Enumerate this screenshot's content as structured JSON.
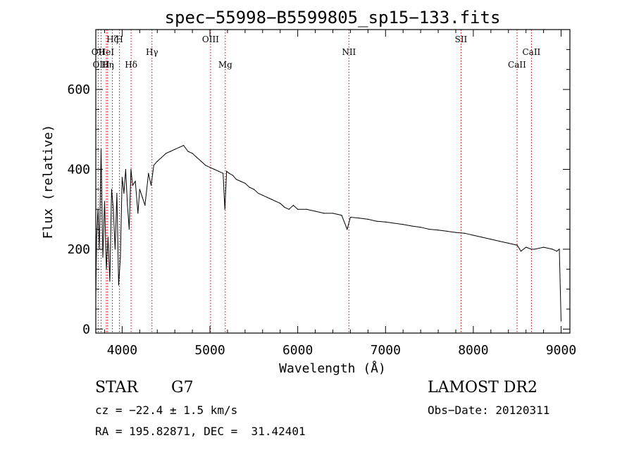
{
  "chart_data": {
    "type": "line",
    "title": "spec−55998−B5599805_sp15−133.fits",
    "xlabel": "Wavelength (Å)",
    "ylabel": "Flux (relative)",
    "xlim": [
      3700,
      9100
    ],
    "ylim": [
      -10,
      750
    ],
    "xticks": [
      4000,
      5000,
      6000,
      7000,
      8000,
      9000
    ],
    "yticks": [
      0,
      200,
      400,
      600
    ],
    "grid": false,
    "series": [
      {
        "x": [
          3700,
          3710,
          3725,
          3740,
          3760,
          3780,
          3800,
          3820,
          3840,
          3860,
          3880,
          3900,
          3920,
          3940,
          3960,
          3980,
          4000,
          4020,
          4040,
          4060,
          4080,
          4100,
          4120,
          4150,
          4180,
          4200,
          4230,
          4260,
          4300,
          4330,
          4360,
          4400,
          4450,
          4500,
          4550,
          4600,
          4650,
          4700,
          4750,
          4800,
          4850,
          4900,
          4950,
          5000,
          5050,
          5100,
          5150,
          5170,
          5190,
          5220,
          5260,
          5300,
          5350,
          5400,
          5450,
          5500,
          5550,
          5600,
          5650,
          5700,
          5750,
          5800,
          5850,
          5900,
          5950,
          6000,
          6100,
          6200,
          6300,
          6400,
          6500,
          6563,
          6600,
          6700,
          6800,
          6900,
          7000,
          7100,
          7200,
          7300,
          7400,
          7500,
          7600,
          7700,
          7800,
          7900,
          8000,
          8100,
          8200,
          8300,
          8400,
          8500,
          8542,
          8600,
          8662,
          8700,
          8800,
          8900,
          8950,
          8980,
          9000
        ],
        "y": [
          80,
          230,
          300,
          200,
          450,
          180,
          320,
          150,
          230,
          120,
          350,
          300,
          200,
          340,
          110,
          180,
          380,
          340,
          400,
          310,
          250,
          400,
          360,
          370,
          290,
          350,
          330,
          310,
          390,
          360,
          410,
          420,
          430,
          440,
          445,
          450,
          455,
          460,
          445,
          440,
          430,
          420,
          410,
          405,
          400,
          395,
          390,
          300,
          395,
          390,
          385,
          375,
          370,
          365,
          355,
          350,
          340,
          335,
          330,
          325,
          320,
          315,
          305,
          300,
          310,
          300,
          300,
          295,
          290,
          290,
          285,
          250,
          280,
          278,
          275,
          270,
          268,
          265,
          262,
          258,
          255,
          250,
          248,
          245,
          242,
          240,
          235,
          230,
          225,
          220,
          215,
          210,
          195,
          205,
          200,
          200,
          205,
          200,
          195,
          200,
          20
        ]
      }
    ],
    "line_markers": [
      {
        "label": "Hζ",
        "wavelength": 3889,
        "row": 1,
        "color": "#cc0000"
      },
      {
        "label": "H",
        "wavelength": 3970,
        "row": 1,
        "color": "#cc0000"
      },
      {
        "label": "OII",
        "wavelength": 3727,
        "row": 2,
        "color": "#cc0000"
      },
      {
        "label": "HeI",
        "wavelength": 3820,
        "row": 2,
        "color": "#cc0000"
      },
      {
        "label": "OIII",
        "wavelength": 3760,
        "row": 3,
        "color": "#cc0000"
      },
      {
        "label": "Hη",
        "wavelength": 3835,
        "row": 3,
        "color": "#cc0000"
      },
      {
        "label": "Hδ",
        "wavelength": 4102,
        "row": 3,
        "color": "#cc0000"
      },
      {
        "label": "Hγ",
        "wavelength": 4340,
        "row": 2,
        "color": "#cc0000"
      },
      {
        "label": "OIII",
        "wavelength": 5007,
        "row": 1,
        "color": "#cc0000"
      },
      {
        "label": "Mg",
        "wavelength": 5175,
        "row": 3,
        "color": "#cc0000"
      },
      {
        "label": "NII",
        "wavelength": 6583,
        "row": 2,
        "color": "#cc0000"
      },
      {
        "label": "SII",
        "wavelength": 7860,
        "row": 1,
        "color": "#cc0000"
      },
      {
        "label": "CaII",
        "wavelength": 8498,
        "row": 3,
        "color": "#cc0000"
      },
      {
        "label": "CaII",
        "wavelength": 8662,
        "row": 2,
        "color": "#cc0000"
      }
    ]
  },
  "info": {
    "class": "STAR",
    "subclass": "G7",
    "survey": "LAMOST DR2",
    "cz": "cz = −22.4 ± 1.5 km/s",
    "obs_date": "Obs−Date: 20120311",
    "coords": "RA = 195.82871, DEC =  31.42401"
  }
}
